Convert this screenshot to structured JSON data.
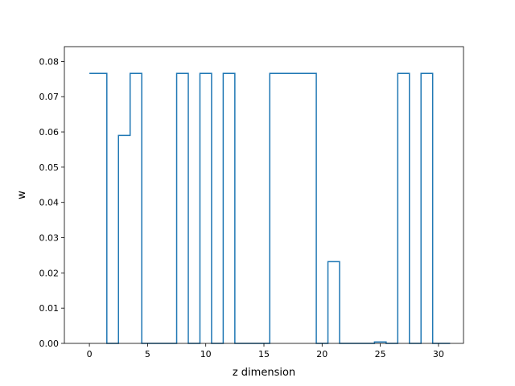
{
  "chart_data": {
    "type": "line",
    "step": "mid",
    "xlabel": "z dimension",
    "ylabel": "w",
    "xlim": [
      -2.15,
      32.15
    ],
    "ylim": [
      0,
      0.0842
    ],
    "xticks": [
      0,
      5,
      10,
      15,
      20,
      25,
      30
    ],
    "yticks": [
      0.0,
      0.01,
      0.02,
      0.03,
      0.04,
      0.05,
      0.06,
      0.07,
      0.08
    ],
    "ytick_labels": [
      "0.00",
      "0.01",
      "0.02",
      "0.03",
      "0.04",
      "0.05",
      "0.06",
      "0.07",
      "0.08"
    ],
    "grid": false,
    "series": [
      {
        "color": "#1f77b4",
        "x": [
          0,
          1,
          2,
          3,
          4,
          5,
          6,
          7,
          8,
          9,
          10,
          11,
          12,
          13,
          14,
          15,
          16,
          17,
          18,
          19,
          20,
          21,
          22,
          23,
          24,
          25,
          26,
          27,
          28,
          29,
          30,
          31
        ],
        "y": [
          0.0766,
          0.0766,
          0,
          0.059,
          0.0766,
          0,
          0,
          0,
          0.0766,
          0,
          0.0766,
          0,
          0.0766,
          0,
          0,
          0,
          0.0766,
          0.0766,
          0.0766,
          0.0766,
          0,
          0.0232,
          0,
          0,
          0,
          0.0004,
          0,
          0.0766,
          0,
          0.0766,
          0,
          0
        ]
      }
    ]
  }
}
